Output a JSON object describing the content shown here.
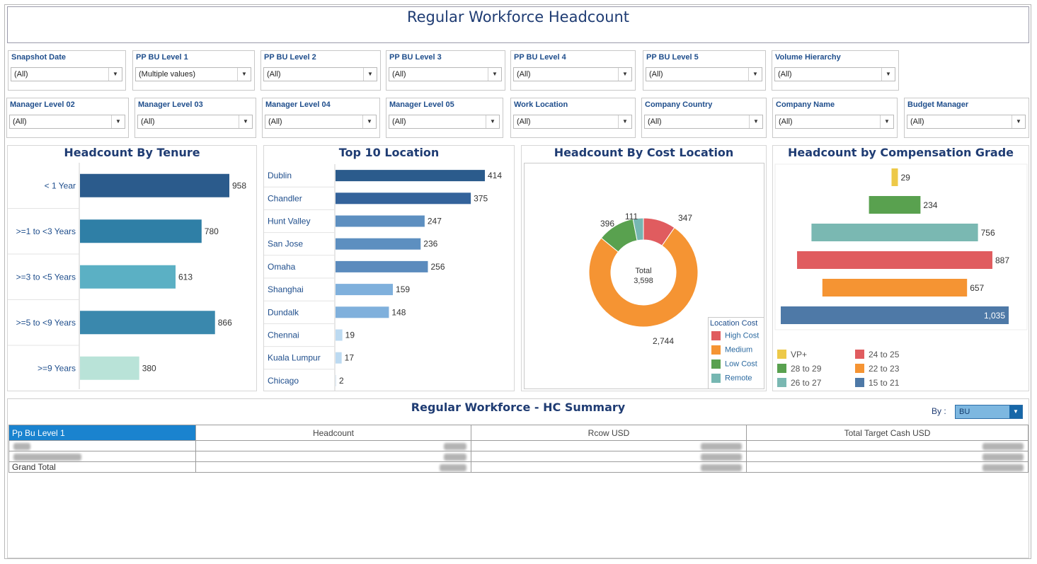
{
  "title": "Regular Workforce Headcount",
  "filters_row1": [
    {
      "label": "Snapshot Date",
      "value": "(All)"
    },
    {
      "label": "PP BU Level 1",
      "value": "(Multiple values)"
    },
    {
      "label": "PP BU Level 2",
      "value": "(All)"
    },
    {
      "label": "PP BU Level 3",
      "value": "(All)"
    },
    {
      "label": "PP BU Level 4",
      "value": "(All)"
    },
    {
      "label": "PP BU Level 5",
      "value": "(All)"
    },
    {
      "label": "Volume Hierarchy",
      "value": "(All)"
    }
  ],
  "filters_row2": [
    {
      "label": "Manager Level 02",
      "value": "(All)"
    },
    {
      "label": "Manager Level 03",
      "value": "(All)"
    },
    {
      "label": "Manager Level 04",
      "value": "(All)"
    },
    {
      "label": "Manager Level 05",
      "value": "(All)"
    },
    {
      "label": "Work Location",
      "value": "(All)"
    },
    {
      "label": "Company Country",
      "value": "(All)"
    },
    {
      "label": "Company Name",
      "value": "(All)"
    },
    {
      "label": "Budget Manager",
      "value": "(All)"
    }
  ],
  "colors": {
    "accent": "#1f3c73",
    "high_cost": "#e05c5f",
    "medium": "#f59433",
    "low_cost": "#59a14f",
    "remote": "#76b7b2"
  },
  "chart_data": [
    {
      "type": "bar",
      "title": "Headcount By Tenure",
      "categories": [
        "< 1 Year",
        ">=1 to <3 Years",
        ">=3 to <5 Years",
        ">=5 to <9 Years",
        ">=9 Years"
      ],
      "values": [
        958,
        780,
        613,
        866,
        380
      ],
      "colors": [
        "#2b5b8c",
        "#2f7fa6",
        "#5bb0c4",
        "#3a88ad",
        "#b9e3d8"
      ]
    },
    {
      "type": "bar",
      "title": "Top 10 Location",
      "categories": [
        "Dublin",
        "Chandler",
        "Hunt Valley",
        "San Jose",
        "Omaha",
        "Shanghai",
        "Dundalk",
        "Chennai",
        "Kuala Lumpur",
        "Chicago"
      ],
      "values": [
        414,
        375,
        247,
        236,
        256,
        159,
        148,
        19,
        17,
        2
      ],
      "colors": [
        "#2b5b8c",
        "#34639b",
        "#5d8fc0",
        "#5d8fc0",
        "#5b8bbd",
        "#7fb0dc",
        "#7fb0dc",
        "#bcdaf1",
        "#bcdaf1",
        "#dbe9f5"
      ]
    },
    {
      "type": "pie",
      "title": "Headcount By Cost Location",
      "center_label": "Total",
      "center_value": "3,598",
      "legend_title": "Location Cost",
      "slices": [
        {
          "name": "High Cost",
          "value": 347,
          "label": "347",
          "color": "#e05c5f"
        },
        {
          "name": "Medium",
          "value": 2744,
          "label": "2,744",
          "color": "#f59433"
        },
        {
          "name": "Low Cost",
          "value": 396,
          "label": "396",
          "color": "#59a14f"
        },
        {
          "name": "Remote",
          "value": 111,
          "label": "111",
          "color": "#76b7b2"
        }
      ]
    },
    {
      "type": "bar",
      "title": "Headcount by Compensation Grade",
      "categories": [
        "VP+",
        "28 to 29",
        "26 to 27",
        "24 to 25",
        "22 to 23",
        "15 to 21"
      ],
      "values": [
        29,
        234,
        756,
        887,
        657,
        1035
      ],
      "labels": [
        "29",
        "234",
        "756",
        "887",
        "657",
        "1,035"
      ],
      "colors": [
        "#edc948",
        "#59a14f",
        "#7ab8b2",
        "#e05c5f",
        "#f59433",
        "#4e79a7"
      ]
    }
  ],
  "summary": {
    "title": "Regular Workforce - HC Summary",
    "by_label": "By :",
    "by_value": "BU",
    "columns": [
      "Pp Bu Level 1",
      "Headcount",
      "Rcow USD",
      "Total Target Cash USD"
    ],
    "grand_total_label": "Grand Total"
  }
}
